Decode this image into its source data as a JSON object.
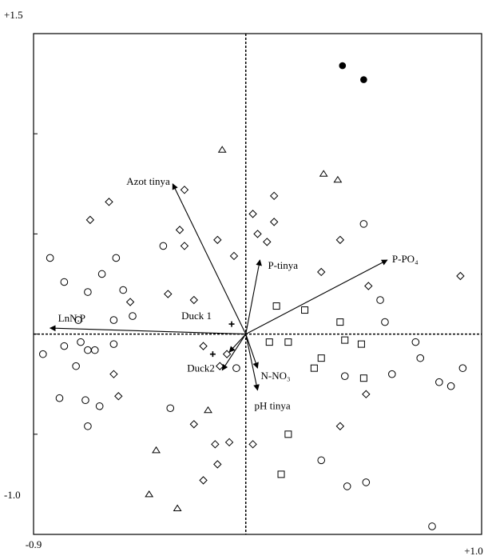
{
  "chart_data": {
    "type": "biplot",
    "xlim": [
      -0.9,
      1.0
    ],
    "ylim": [
      -1.0,
      1.5
    ],
    "xticks": [
      {
        "value": -0.9,
        "label": "-0.9"
      },
      {
        "value": 1.0,
        "label": "+1.0"
      }
    ],
    "yticks": [
      {
        "value": 1.5,
        "label": "+1.5"
      },
      {
        "value": -1.0,
        "label": "-1.0"
      }
    ],
    "yminorticks": [
      -0.5,
      0,
      0.5,
      1
    ],
    "series": [
      {
        "marker": "filled-circle",
        "color": "#000",
        "x": [
          0.41,
          0.5
        ],
        "y": [
          1.34,
          1.27
        ]
      },
      {
        "marker": "triangle",
        "color": "#000",
        "x": [
          -0.1,
          0.33,
          0.39,
          -0.16,
          -0.38,
          -0.41,
          -0.29
        ],
        "y": [
          0.92,
          0.8,
          0.77,
          -0.38,
          -0.58,
          -0.8,
          -0.87
        ]
      },
      {
        "marker": "diamond",
        "color": "#000",
        "x": [
          -0.26,
          -0.58,
          -0.66,
          0.12,
          0.03,
          0.12,
          -0.28,
          -0.12,
          0.05,
          0.09,
          -0.26,
          0.4,
          -0.05,
          0.32,
          0.91,
          0.52,
          -0.33,
          -0.22,
          -0.49,
          -0.18,
          -0.08,
          -0.11,
          -0.56,
          -0.54,
          0.51,
          -0.22,
          0.4,
          -0.07,
          -0.13,
          0.03,
          -0.12,
          -0.18
        ],
        "y": [
          0.72,
          0.66,
          0.57,
          0.69,
          0.6,
          0.56,
          0.52,
          0.47,
          0.5,
          0.46,
          0.44,
          0.47,
          0.39,
          0.31,
          0.29,
          0.24,
          0.2,
          0.17,
          0.16,
          -0.06,
          -0.1,
          -0.16,
          -0.2,
          -0.31,
          -0.3,
          -0.45,
          -0.46,
          -0.54,
          -0.55,
          -0.55,
          -0.65,
          -0.73
        ]
      },
      {
        "marker": "circle",
        "color": "#000",
        "x": [
          -0.83,
          0.5,
          -0.35,
          -0.55,
          -0.77,
          -0.61,
          -0.67,
          -0.52,
          0.57,
          0.59,
          -0.56,
          -0.71,
          -0.48,
          -0.7,
          -0.77,
          -0.67,
          -0.64,
          -0.56,
          -0.86,
          -0.72,
          -0.04,
          0.72,
          0.74,
          0.92,
          0.42,
          0.82,
          0.87,
          0.62,
          -0.79,
          -0.68,
          -0.62,
          -0.32,
          -0.67,
          0.32,
          0.43,
          0.51,
          0.79
        ],
        "y": [
          0.38,
          0.55,
          0.44,
          0.38,
          0.26,
          0.3,
          0.21,
          0.22,
          0.17,
          0.06,
          0.07,
          0.07,
          0.09,
          -0.04,
          -0.06,
          -0.08,
          -0.08,
          -0.05,
          -0.1,
          -0.16,
          -0.17,
          -0.04,
          -0.12,
          -0.17,
          -0.21,
          -0.24,
          -0.26,
          -0.2,
          -0.32,
          -0.33,
          -0.36,
          -0.37,
          -0.46,
          -0.63,
          -0.76,
          -0.74,
          -0.96
        ]
      },
      {
        "marker": "square",
        "color": "#000",
        "x": [
          0.13,
          0.25,
          0.4,
          0.1,
          0.18,
          0.32,
          0.42,
          0.49,
          0.29,
          0.5,
          0.18,
          0.15
        ],
        "y": [
          0.14,
          0.12,
          0.06,
          -0.04,
          -0.04,
          -0.12,
          -0.03,
          -0.05,
          -0.17,
          -0.22,
          -0.5,
          -0.7
        ]
      },
      {
        "marker": "plus",
        "color": "#000",
        "x": [
          -0.06,
          -0.14
        ],
        "y": [
          0.05,
          -0.1
        ]
      }
    ],
    "arrows": [
      {
        "label": "Azot tinya",
        "x": -0.31,
        "y": 0.75
      },
      {
        "label": "LnN.P",
        "x": -0.83,
        "y": 0.03
      },
      {
        "label": "P-PO₄",
        "x": 0.6,
        "y": 0.37
      },
      {
        "label": "P-tinya",
        "x": 0.06,
        "y": 0.37
      },
      {
        "label": "N-NO₃",
        "x": 0.05,
        "y": -0.17
      },
      {
        "label": "pH tinya",
        "x": 0.05,
        "y": -0.28
      },
      {
        "label": "Duck 1",
        "x": -0.07,
        "y": -0.09
      },
      {
        "label": "Duck2",
        "x": -0.1,
        "y": -0.18
      }
    ]
  }
}
